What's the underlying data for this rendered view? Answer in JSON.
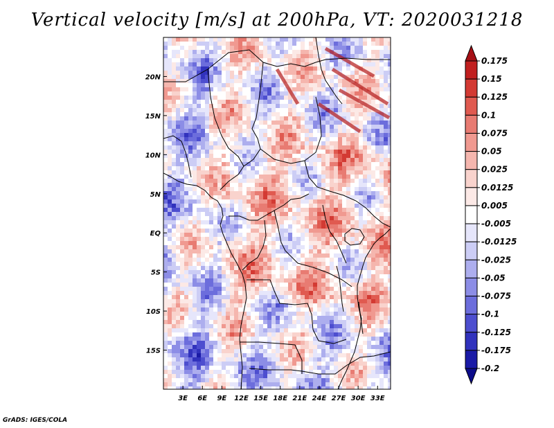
{
  "title": "Vertical velocity [m/s] at 200hPa, VT: 2020031218",
  "credit": "GrADS: IGES/COLA",
  "colors": {
    "frame": "#000000",
    "background": "#ffffff",
    "pos_strong": "#b41c1c",
    "neg_strong": "#1c1cb4",
    "neutral": "#ffffff"
  },
  "map": {
    "lon_range": [
      0,
      35
    ],
    "lat_range": [
      -20,
      25
    ],
    "lon_ticks": [
      "3E",
      "6E",
      "9E",
      "12E",
      "15E",
      "18E",
      "21E",
      "24E",
      "27E",
      "30E",
      "33E"
    ],
    "lat_ticks": [
      "20N",
      "15N",
      "10N",
      "5N",
      "EQ",
      "5S",
      "10S",
      "15S"
    ]
  },
  "colorbar": {
    "labels": [
      "0.175",
      "0.15",
      "0.125",
      "0.1",
      "0.075",
      "0.05",
      "0.025",
      "0.0125",
      "0.005",
      "-0.005",
      "-0.0125",
      "-0.025",
      "-0.05",
      "-0.075",
      "-0.1",
      "-0.125",
      "-0.175",
      "-0.2"
    ],
    "colors": [
      "#a50f15",
      "#c11f1f",
      "#d33a33",
      "#e05a50",
      "#e87b72",
      "#f09990",
      "#f5b6ae",
      "#f9d3cd",
      "#fce9e6",
      "#ffffff",
      "#e6e6fb",
      "#cccdf5",
      "#adaeee",
      "#8c8de6",
      "#6c6ddc",
      "#4d4ecf",
      "#3132bd",
      "#1a1aa6",
      "#0c0c8a"
    ]
  }
}
